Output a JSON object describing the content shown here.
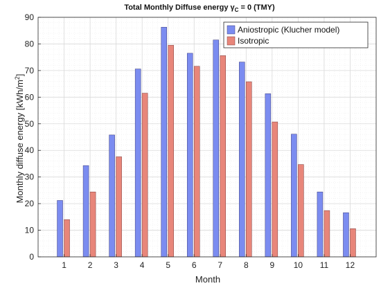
{
  "chart_data": {
    "type": "bar",
    "title": "Total Monthly Diffuse energy γ",
    "title_sub": "C",
    "title_tail": " = 0 (TMY)",
    "xlabel": "Month",
    "ylabel": "Monthly diffuse energy [kWh/m",
    "ylabel_sup": "2",
    "ylabel_tail": "]",
    "categories": [
      "1",
      "2",
      "3",
      "4",
      "5",
      "6",
      "7",
      "8",
      "9",
      "10",
      "11",
      "12"
    ],
    "ylim": [
      0,
      90
    ],
    "yticks": [
      0,
      10,
      20,
      30,
      40,
      50,
      60,
      70,
      80,
      90
    ],
    "grid": true,
    "legend_position": "top-right",
    "series": [
      {
        "name": "Aniostropic (Klucher model)",
        "color": "#7b8cf0",
        "values": [
          21.2,
          34.3,
          45.8,
          70.6,
          86.3,
          76.5,
          81.5,
          73.2,
          61.3,
          46.1,
          24.4,
          16.6
        ]
      },
      {
        "name": "Isotropic",
        "color": "#e8867a",
        "values": [
          14.0,
          24.4,
          37.6,
          61.5,
          79.5,
          71.6,
          75.6,
          65.8,
          50.7,
          34.7,
          17.4,
          10.6
        ]
      }
    ]
  }
}
